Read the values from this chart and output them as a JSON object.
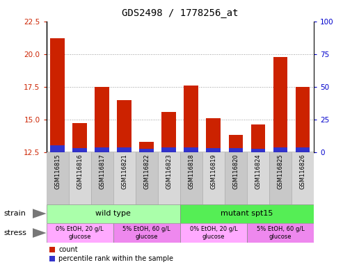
{
  "title": "GDS2498 / 1778256_at",
  "samples": [
    "GSM116815",
    "GSM116816",
    "GSM116817",
    "GSM116821",
    "GSM116822",
    "GSM116823",
    "GSM116818",
    "GSM116819",
    "GSM116820",
    "GSM116824",
    "GSM116825",
    "GSM116826"
  ],
  "count_values": [
    21.2,
    14.7,
    17.5,
    16.5,
    13.3,
    15.6,
    17.6,
    15.1,
    13.8,
    14.6,
    19.8,
    17.5
  ],
  "percentile_heights": [
    0.55,
    0.3,
    0.35,
    0.35,
    0.25,
    0.35,
    0.35,
    0.3,
    0.3,
    0.28,
    0.35,
    0.35
  ],
  "ymin": 12.5,
  "ymax": 22.5,
  "yticks": [
    12.5,
    15.0,
    17.5,
    20.0,
    22.5
  ],
  "y2min": 0,
  "y2max": 100,
  "y2ticks": [
    0,
    25,
    50,
    75,
    100
  ],
  "bar_color": "#cc2200",
  "percentile_color": "#3333cc",
  "strain_wt_color": "#aaffaa",
  "strain_mut_color": "#55ee55",
  "stress_color1": "#ffaaff",
  "stress_color2": "#ee88ee",
  "bg_color": "#ffffff",
  "axis_color_left": "#cc2200",
  "axis_color_right": "#0000cc",
  "title_fontsize": 10,
  "tick_fontsize": 7.5,
  "legend_count_label": "count",
  "legend_pct_label": "percentile rank within the sample"
}
